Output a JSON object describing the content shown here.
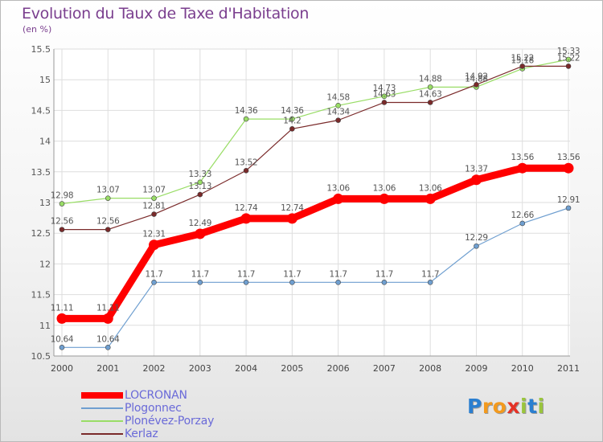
{
  "header": {
    "title": "Evolution du Taux de Taxe d'Habitation",
    "unit": "(en %)"
  },
  "chart_data": {
    "type": "line",
    "x": [
      "2000",
      "2001",
      "2002",
      "2003",
      "2004",
      "2005",
      "2006",
      "2007",
      "2008",
      "2009",
      "2010",
      "2011"
    ],
    "y_ticks": [
      "10.5",
      "11",
      "11.5",
      "12",
      "12.5",
      "13",
      "13.5",
      "14",
      "14.5",
      "15",
      "15.5"
    ],
    "ylim": [
      10.5,
      15.5
    ],
    "grid": true,
    "legend_position": "bottom-left",
    "series": [
      {
        "name": "LOCRONAN",
        "color": "#ff0000",
        "values": [
          11.11,
          11.11,
          12.31,
          12.49,
          12.74,
          12.74,
          13.06,
          13.06,
          13.06,
          13.37,
          13.56,
          13.56
        ],
        "labels": [
          "11.11",
          "11.11",
          "12.31",
          "12.49",
          "12.74",
          "12.74",
          "13.06",
          "13.06",
          "13.06",
          "13.37",
          "13.56",
          "13.56"
        ]
      },
      {
        "name": "Plogonnec",
        "color": "#6f9fd0",
        "values": [
          10.64,
          10.64,
          11.7,
          11.7,
          11.7,
          11.7,
          11.7,
          11.7,
          11.7,
          12.29,
          12.66,
          12.91
        ],
        "labels": [
          "10.64",
          "10.64",
          "11.7",
          "11.7",
          "11.7",
          "11.7",
          "11.7",
          "11.7",
          "11.7",
          "12.29",
          "12.66",
          "12.91"
        ]
      },
      {
        "name": "Plonévez-Porzay",
        "color": "#99dd66",
        "values": [
          12.98,
          13.07,
          13.07,
          13.33,
          14.36,
          14.36,
          14.58,
          14.73,
          14.88,
          14.88,
          15.18,
          15.33
        ],
        "labels": [
          "12.98",
          "13.07",
          "13.07",
          "13.33",
          "14.36",
          "14.36",
          "14.58",
          "14.73",
          "14.88",
          "14.88",
          "15.18",
          "15.33"
        ]
      },
      {
        "name": "Kerlaz",
        "color": "#7a2a2a",
        "values": [
          12.56,
          12.56,
          12.81,
          13.13,
          13.52,
          14.2,
          14.34,
          14.63,
          14.63,
          14.92,
          15.22,
          15.22
        ],
        "labels": [
          "12.56",
          "12.56",
          "12.81",
          "13.13",
          "13.52",
          "14.2",
          "14.34",
          "14.63",
          "14.63",
          "14.92",
          "15.22",
          "15.22"
        ]
      }
    ]
  },
  "legend": {
    "items": [
      {
        "label": "LOCRONAN"
      },
      {
        "label": "Plogonnec"
      },
      {
        "label": "Plonévez-Porzay"
      },
      {
        "label": "Kerlaz"
      }
    ]
  },
  "logo": {
    "text": "Proxiti",
    "letters": [
      "P",
      "r",
      "o",
      "x",
      "i",
      "t",
      "i"
    ],
    "colors": [
      "#2b7fd0",
      "#f39a1e",
      "#f39a1e",
      "#e53226",
      "#9ac53d",
      "#2b7fd0",
      "#9ac53d"
    ]
  }
}
